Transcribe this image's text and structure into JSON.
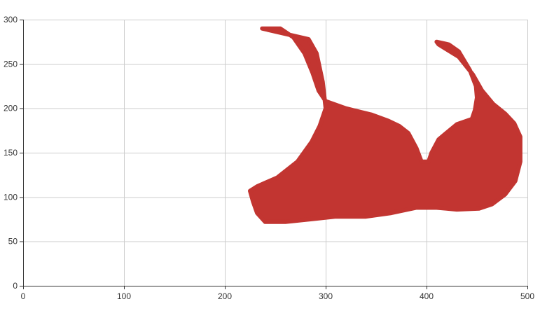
{
  "chart_data": {
    "type": "area",
    "title": "",
    "xlabel": "",
    "ylabel": "",
    "xlim": [
      0,
      500
    ],
    "ylim": [
      0,
      300
    ],
    "x_ticks": [
      0,
      100,
      200,
      300,
      400,
      500
    ],
    "y_ticks": [
      0,
      50,
      100,
      150,
      200,
      250,
      300
    ],
    "grid": true,
    "legend": "none",
    "series": [
      {
        "color": "#c23531",
        "points": [
          [
            237,
            290
          ],
          [
            255,
            290
          ],
          [
            268,
            280
          ],
          [
            279,
            262
          ],
          [
            287,
            240
          ],
          [
            293,
            220
          ],
          [
            300,
            208
          ],
          [
            320,
            200
          ],
          [
            345,
            193
          ],
          [
            362,
            186
          ],
          [
            373,
            180
          ],
          [
            382,
            172
          ],
          [
            390,
            155
          ],
          [
            395,
            140
          ],
          [
            402,
            140
          ],
          [
            405,
            150
          ],
          [
            412,
            165
          ],
          [
            430,
            182
          ],
          [
            445,
            188
          ],
          [
            448,
            198
          ],
          [
            450,
            212
          ],
          [
            449,
            225
          ],
          [
            443,
            243
          ],
          [
            432,
            264
          ],
          [
            422,
            272
          ],
          [
            410,
            275
          ],
          [
            412,
            272
          ],
          [
            432,
            258
          ],
          [
            446,
            238
          ],
          [
            455,
            220
          ],
          [
            466,
            205
          ],
          [
            478,
            194
          ],
          [
            487,
            183
          ],
          [
            493,
            168
          ],
          [
            493,
            140
          ],
          [
            488,
            118
          ],
          [
            478,
            103
          ],
          [
            465,
            92
          ],
          [
            452,
            87
          ],
          [
            430,
            86
          ],
          [
            410,
            88
          ],
          [
            390,
            88
          ],
          [
            365,
            82
          ],
          [
            340,
            78
          ],
          [
            310,
            78
          ],
          [
            285,
            75
          ],
          [
            260,
            72
          ],
          [
            240,
            72
          ],
          [
            232,
            82
          ],
          [
            228,
            95
          ],
          [
            225,
            107
          ],
          [
            232,
            112
          ],
          [
            252,
            122
          ],
          [
            272,
            140
          ],
          [
            286,
            162
          ],
          [
            294,
            180
          ],
          [
            300,
            200
          ],
          [
            297,
            230
          ],
          [
            291,
            262
          ],
          [
            283,
            278
          ]
        ]
      }
    ]
  }
}
